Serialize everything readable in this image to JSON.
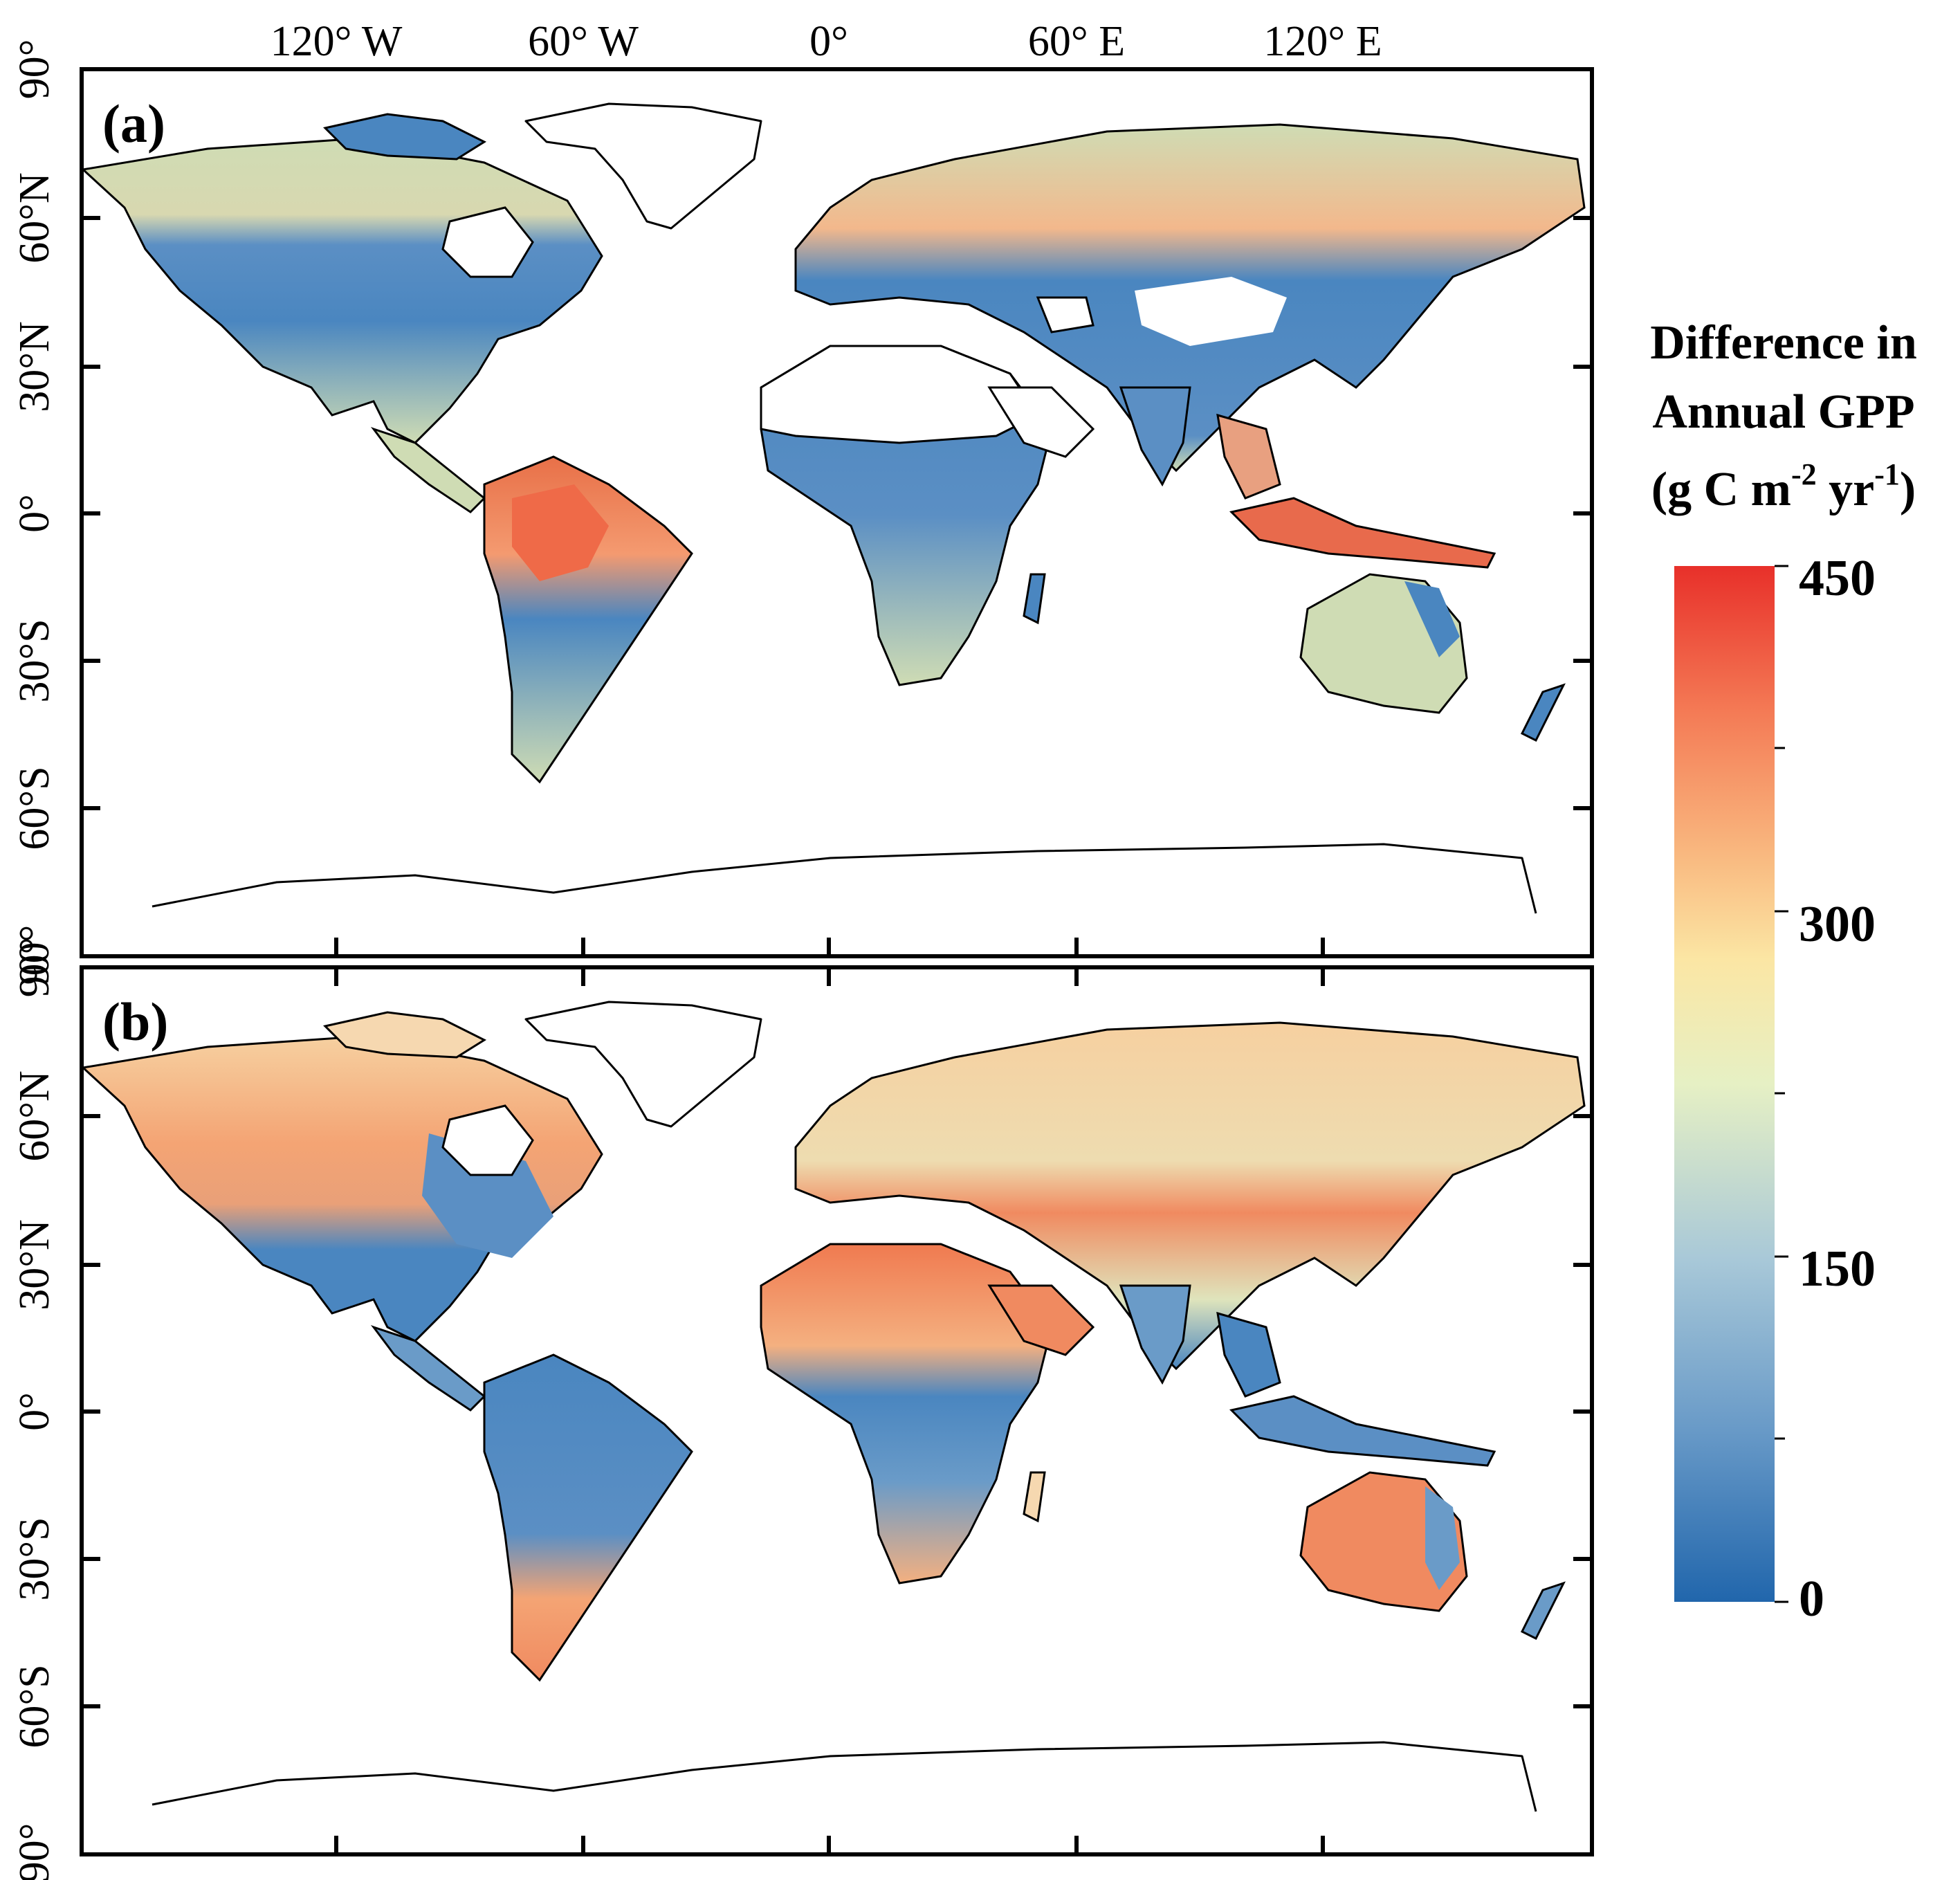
{
  "figure": {
    "top_axis_labels": [
      "120° W",
      "60° W",
      "0°",
      "60° E",
      "120° E"
    ],
    "left_axis_labels": [
      "90°",
      "60°N",
      "30°N",
      "0°",
      "30°S",
      "60°S",
      "90°"
    ],
    "panels": [
      {
        "label": "(a)"
      },
      {
        "label": "(b)"
      }
    ],
    "colorbar": {
      "title_lines": [
        "Difference in",
        "Annual GPP"
      ],
      "units_prefix": "(g C m",
      "units_exp1": "-2",
      "units_mid": " yr",
      "units_exp2": "-1",
      "units_suffix": ")",
      "ticks": [
        "450",
        "300",
        "150",
        "0"
      ],
      "colors": [
        "#2166ac",
        "#6a9bc8",
        "#a8c8d8",
        "#e6f0c4",
        "#fbe6a4",
        "#f9b980",
        "#f47a55",
        "#e8302a"
      ],
      "range": [
        0,
        450
      ]
    },
    "colors": {
      "land_blue": "#4a86c0",
      "land_green": "#cfdcb4",
      "land_orange": "#f4a474",
      "land_red": "#e85a3c",
      "coastline": "#000000"
    }
  }
}
